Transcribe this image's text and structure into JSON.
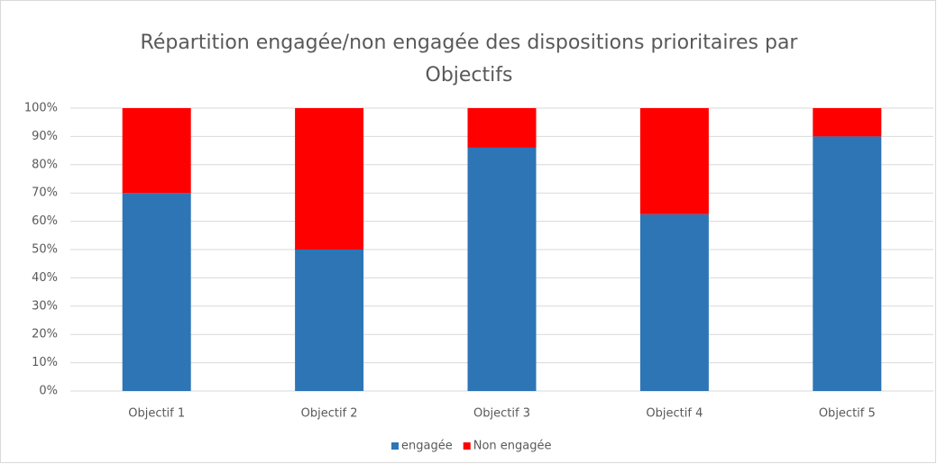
{
  "chart_data": {
    "type": "stacked_bar",
    "title": "Répartition engagée/non engagée des dispositions prioritaires par Objectifs",
    "categories": [
      "Objectif 1",
      "Objectif 2",
      "Objectif 3",
      "Objectif 4",
      "Objectif 5"
    ],
    "series": [
      {
        "name": "engagée",
        "color": "#2e75b6",
        "values": [
          70,
          50,
          86,
          62.5,
          90
        ]
      },
      {
        "name": "Non engagée",
        "color": "#ff0000",
        "values": [
          30,
          50,
          14,
          37.5,
          10
        ]
      }
    ],
    "ylim": [
      0,
      100
    ],
    "yticks": [
      {
        "value": 0,
        "label": "0%"
      },
      {
        "value": 10,
        "label": "10%"
      },
      {
        "value": 20,
        "label": "20%"
      },
      {
        "value": 30,
        "label": "30%"
      },
      {
        "value": 40,
        "label": "40%"
      },
      {
        "value": 50,
        "label": "50%"
      },
      {
        "value": 60,
        "label": "60%"
      },
      {
        "value": 70,
        "label": "70%"
      },
      {
        "value": 80,
        "label": "80%"
      },
      {
        "value": 90,
        "label": "90%"
      },
      {
        "value": 100,
        "label": "100%"
      }
    ],
    "grid": true,
    "legend": "bottom"
  }
}
